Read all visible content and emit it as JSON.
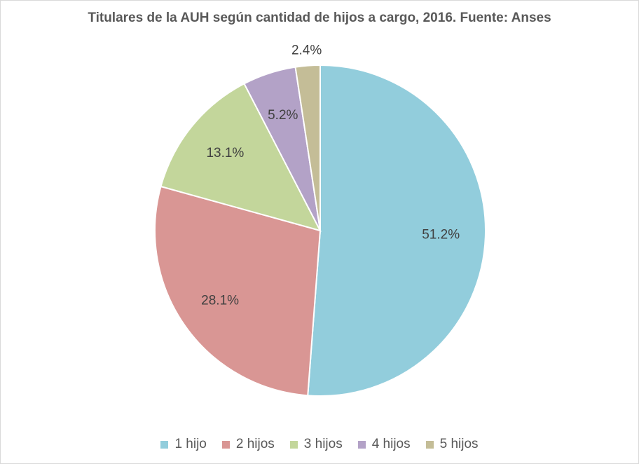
{
  "chart_data": {
    "type": "pie",
    "title": "Titulares de la AUH según cantidad de hijos a cargo, 2016. Fuente: Anses",
    "categories": [
      "1 hijo",
      "2 hijos",
      "3 hijos",
      "4 hijos",
      "5 hijos"
    ],
    "values": [
      51.2,
      28.1,
      13.1,
      5.2,
      2.4
    ],
    "labels": [
      "51.2%",
      "28.1%",
      "13.1%",
      "5.2%",
      "2.4%"
    ],
    "colors": [
      "#92CDDC",
      "#D99694",
      "#C3D69B",
      "#B3A2C7",
      "#C4BD97"
    ],
    "legend_position": "bottom",
    "start": "top",
    "direction": "clockwise"
  }
}
